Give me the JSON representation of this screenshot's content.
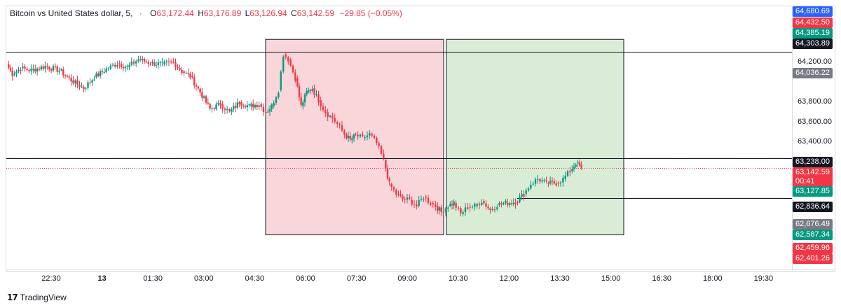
{
  "header": {
    "symbol": "Bitcoin vs United States dollar, 5,",
    "o_label": "O",
    "o_value": "63,172.44",
    "h_label": "H",
    "h_value": "63,176.89",
    "l_label": "L",
    "l_value": "63,126.94",
    "c_label": "C",
    "c_value": "63,142.59",
    "change": "−29.85 (−0.05%)"
  },
  "brand": {
    "name": "TradingView",
    "icon": "tradingview-logo"
  },
  "price_labels": [
    {
      "text": "64,680.69",
      "color": "#2962ff",
      "price": 64680.69
    },
    {
      "text": "64,432.50",
      "color": "#f23645",
      "price": 64432.5
    },
    {
      "text": "64,385.19",
      "color": "#089981",
      "price": 64385.19
    },
    {
      "text": "64,303.89",
      "color": "#131722",
      "price": 64303.89
    },
    {
      "text": "64,036.22",
      "color": "#787b86",
      "price": 64036.22
    },
    {
      "text": "63,238.00",
      "color": "#131722",
      "price": 63238.0
    },
    {
      "text": "63,142.59",
      "color": "#f23645",
      "price": 63142.59
    },
    {
      "text": "00:41",
      "color": "#f23645",
      "price": 63080
    },
    {
      "text": "63,127.85",
      "color": "#089981",
      "price": 63020
    },
    {
      "text": "62,836.64",
      "color": "#131722",
      "price": 62836.64
    },
    {
      "text": "62,676.49",
      "color": "#787b86",
      "price": 62676.49
    },
    {
      "text": "62,587.34",
      "color": "#089981",
      "price": 62587.34
    },
    {
      "text": "62,459.96",
      "color": "#f23645",
      "price": 62459.96
    },
    {
      "text": "62,401.26",
      "color": "#f23645",
      "price": 62401.26
    }
  ],
  "chart_data": {
    "type": "candlestick",
    "symbol": "BTCUSD",
    "interval": "5",
    "y_ticks": [
      "64,200.00",
      "63,800.00",
      "63,600.00",
      "63,400.00"
    ],
    "y_tick_values": [
      64200,
      63800,
      63600,
      63400
    ],
    "x_ticks": [
      "22:30",
      "13",
      "01:30",
      "03:00",
      "04:30",
      "06:00",
      "07:30",
      "09:00",
      "10:30",
      "12:00",
      "13:30",
      "15:00",
      "16:30",
      "18:00",
      "19:30"
    ],
    "x_tick_bold": [
      false,
      true,
      false,
      false,
      false,
      false,
      false,
      false,
      false,
      false,
      false,
      false,
      false,
      false,
      false
    ],
    "horizontal_levels": [
      64303.89,
      63238.0,
      62836.64
    ],
    "colors": {
      "up": "#089981",
      "down": "#f23645"
    },
    "zones": [
      {
        "name": "bearish-zone",
        "from": "04:50",
        "to": "10:03",
        "top": 64430,
        "bottom": 62470,
        "fill": "#f8d6da"
      },
      {
        "name": "bullish-zone",
        "from": "10:04",
        "to": "15:10",
        "top": 64430,
        "bottom": 62470,
        "fill": "#d9ecd6"
      }
    ],
    "path": [
      [
        0,
        64180
      ],
      [
        8,
        64080
      ],
      [
        20,
        64140
      ],
      [
        35,
        64120
      ],
      [
        55,
        64160
      ],
      [
        75,
        64120
      ],
      [
        92,
        64020
      ],
      [
        110,
        63940
      ],
      [
        125,
        64050
      ],
      [
        142,
        64130
      ],
      [
        158,
        64190
      ],
      [
        172,
        64150
      ],
      [
        188,
        64230
      ],
      [
        205,
        64190
      ],
      [
        222,
        64180
      ],
      [
        238,
        64200
      ],
      [
        250,
        64110
      ],
      [
        262,
        64060
      ],
      [
        276,
        63900
      ],
      [
        290,
        63730
      ],
      [
        305,
        63780
      ],
      [
        318,
        63700
      ],
      [
        332,
        63800
      ],
      [
        346,
        63760
      ],
      [
        360,
        63780
      ],
      [
        370,
        63700
      ],
      [
        378,
        63760
      ],
      [
        388,
        63920
      ],
      [
        395,
        64280
      ],
      [
        402,
        64230
      ],
      [
        412,
        64040
      ],
      [
        420,
        63760
      ],
      [
        428,
        63900
      ],
      [
        436,
        63940
      ],
      [
        445,
        63820
      ],
      [
        455,
        63700
      ],
      [
        465,
        63640
      ],
      [
        472,
        63580
      ],
      [
        482,
        63480
      ],
      [
        490,
        63420
      ],
      [
        498,
        63470
      ],
      [
        508,
        63440
      ],
      [
        518,
        63480
      ],
      [
        528,
        63390
      ],
      [
        538,
        63220
      ],
      [
        546,
        62980
      ],
      [
        556,
        62880
      ],
      [
        565,
        62830
      ],
      [
        575,
        62820
      ],
      [
        585,
        62760
      ],
      [
        595,
        62850
      ],
      [
        605,
        62790
      ],
      [
        612,
        62760
      ],
      [
        620,
        62700
      ],
      [
        630,
        62760
      ],
      [
        638,
        62790
      ],
      [
        648,
        62680
      ],
      [
        658,
        62750
      ],
      [
        668,
        62760
      ],
      [
        678,
        62810
      ],
      [
        690,
        62720
      ],
      [
        700,
        62770
      ],
      [
        712,
        62790
      ],
      [
        726,
        62800
      ],
      [
        738,
        62880
      ],
      [
        748,
        62980
      ],
      [
        758,
        63030
      ],
      [
        770,
        62990
      ],
      [
        784,
        62990
      ],
      [
        794,
        63030
      ],
      [
        804,
        63110
      ],
      [
        812,
        63190
      ],
      [
        820,
        63143
      ]
    ]
  }
}
